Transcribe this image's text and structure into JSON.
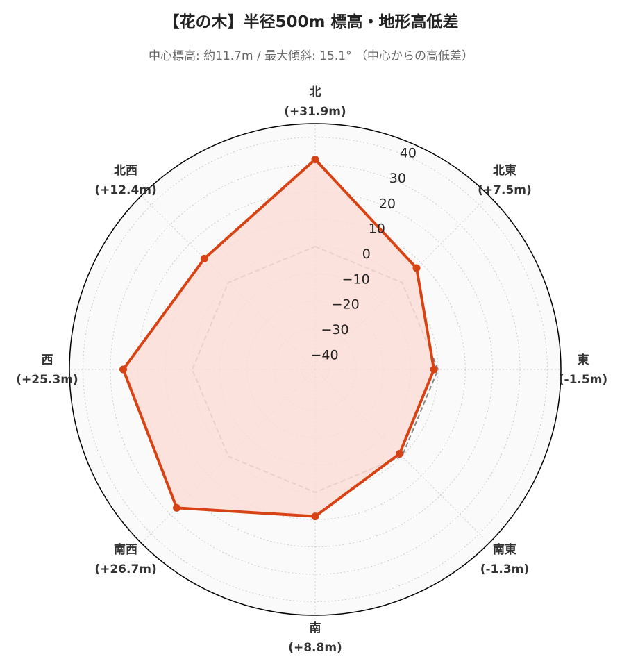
{
  "title": "【花の木】半径500m 標高・地形高低差",
  "subtitle": "中心標高: 約11.7m / 最大傾斜: 15.1° （中心からの高低差）",
  "chart_data": {
    "type": "radar",
    "categories": [
      "北",
      "北東",
      "東",
      "南東",
      "南",
      "南西",
      "西",
      "北西"
    ],
    "category_labels": [
      "(+31.9m)",
      "(+7.5m)",
      "(-1.5m)",
      "(-1.3m)",
      "(+8.8m)",
      "(+26.7m)",
      "(+25.3m)",
      "(+12.4m)"
    ],
    "values": [
      31.9,
      7.5,
      -1.5,
      -1.3,
      8.8,
      26.7,
      25.3,
      12.4
    ],
    "reference_value": 0,
    "rlim": [
      -45,
      45
    ],
    "ticks": [
      -40,
      -30,
      -20,
      -10,
      0,
      10,
      20,
      30,
      40
    ],
    "tick_labels": [
      "−40",
      "−30",
      "−20",
      "−10",
      "0",
      "10",
      "20",
      "30",
      "40"
    ],
    "grid": true,
    "colors": {
      "series": "#d84315",
      "fill": "#fcddd6",
      "reference": "#888888",
      "background": "#fafafa",
      "grid": "#cccccc"
    }
  }
}
